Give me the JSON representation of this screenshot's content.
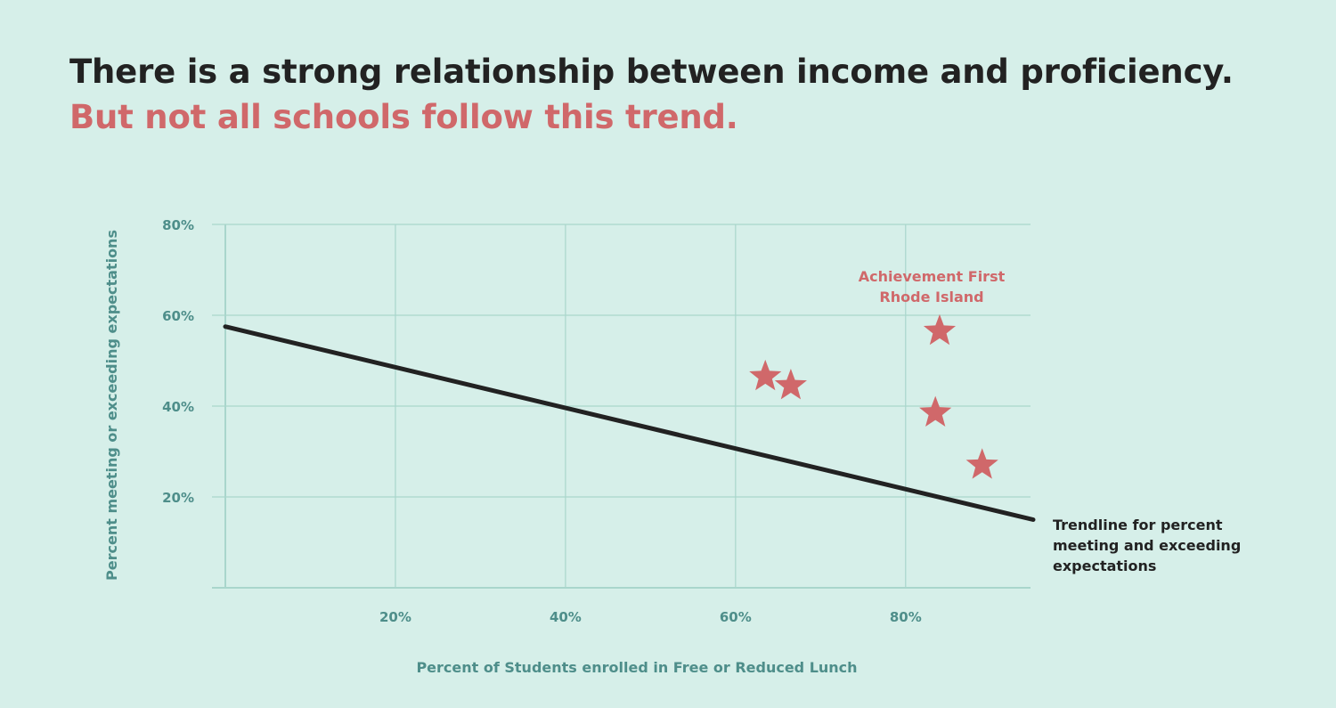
{
  "header": {
    "title": "There is a strong relationship between income and proficiency.",
    "subtitle": "But not all schools follow this trend."
  },
  "colors": {
    "background": "#d6efe9",
    "grid": "#a9d6cc",
    "axis_text": "#4e8e8a",
    "accent": "#d0686a",
    "trendline": "#222222"
  },
  "chart_data": {
    "type": "scatter",
    "xlabel": "Percent of Students enrolled in Free or Reduced Lunch",
    "ylabel": "Percent meeting or exceeding expectations",
    "xlim": [
      0,
      95
    ],
    "ylim": [
      0,
      80
    ],
    "x_ticks": [
      {
        "value": 20,
        "label": "20%"
      },
      {
        "value": 40,
        "label": "40%"
      },
      {
        "value": 60,
        "label": "60%"
      },
      {
        "value": 80,
        "label": "80%"
      }
    ],
    "y_ticks": [
      {
        "value": 20,
        "label": "20%"
      },
      {
        "value": 40,
        "label": "40%"
      },
      {
        "value": 60,
        "label": "60%"
      },
      {
        "value": 80,
        "label": "80%"
      }
    ],
    "grid": true,
    "points": [
      {
        "x": 63.5,
        "y": 46.5
      },
      {
        "x": 66.5,
        "y": 44.5
      },
      {
        "x": 84,
        "y": 56.5
      },
      {
        "x": 83.5,
        "y": 38.5
      },
      {
        "x": 89,
        "y": 27
      }
    ],
    "marker": "star",
    "trendline": {
      "x": [
        0,
        95
      ],
      "y": [
        57.5,
        15
      ]
    },
    "annotations": [
      {
        "lines": [
          "Achievement First",
          "Rhode Island"
        ]
      },
      {
        "lines": [
          "Trendline for percent",
          "meeting and exceeding",
          "expectations"
        ]
      }
    ]
  }
}
